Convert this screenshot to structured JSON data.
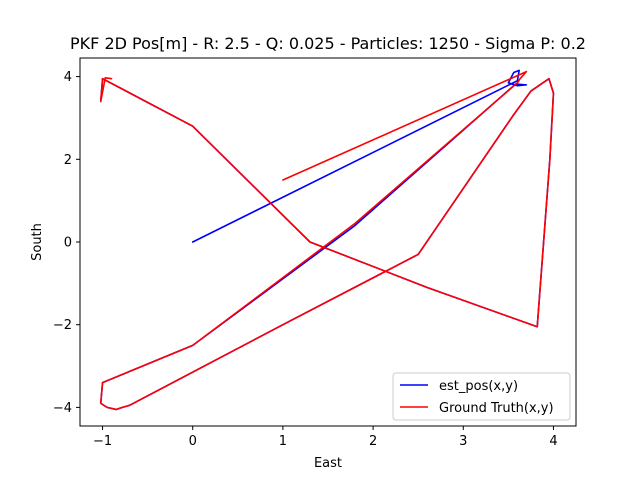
{
  "chart_data": {
    "type": "line",
    "title": "PKF 2D Pos[m] - R: 2.5 - Q: 0.025 - Particles: 1250 - Sigma P: 0.2",
    "xlabel": "East",
    "ylabel": "South",
    "xlim": [
      -1.25,
      4.25
    ],
    "ylim": [
      -4.45,
      4.45
    ],
    "xticks": [
      -1,
      0,
      1,
      2,
      3,
      4
    ],
    "yticks": [
      -4,
      -2,
      0,
      2,
      4
    ],
    "xtick_labels": [
      "−1",
      "0",
      "1",
      "2",
      "3",
      "4"
    ],
    "ytick_labels": [
      "−4",
      "−2",
      "0",
      "2",
      "4"
    ],
    "grid": false,
    "legend_position": "lower-right",
    "series": [
      {
        "name": "est_pos(x,y)",
        "color": "#0000ff",
        "x": [
          0.0,
          3.6,
          3.62,
          3.56,
          3.5,
          3.6,
          3.7,
          3.58,
          1.8,
          0.0,
          -1.0,
          -1.02,
          -0.95,
          -0.85,
          -0.78,
          -0.7,
          1.0,
          2.5,
          3.55,
          3.75,
          3.95,
          4.0,
          3.96,
          3.82,
          2.6,
          1.3,
          0.0,
          -1.0,
          -1.02
        ],
        "y": [
          0.0,
          3.9,
          4.15,
          4.1,
          3.85,
          3.78,
          3.8,
          3.82,
          0.4,
          -2.5,
          -3.4,
          -3.9,
          -4.0,
          -4.05,
          -4.0,
          -3.95,
          -2.0,
          -0.3,
          3.05,
          3.65,
          3.95,
          3.6,
          2.0,
          -2.05,
          -1.1,
          0.0,
          2.8,
          3.95,
          3.4
        ]
      },
      {
        "name": "Ground Truth(x,y)",
        "color": "#ff0000",
        "x": [
          1.0,
          3.7,
          3.63,
          3.6,
          1.8,
          0.0,
          -1.0,
          -1.02,
          -0.95,
          -0.85,
          -0.78,
          -0.7,
          1.0,
          2.5,
          3.55,
          3.75,
          3.95,
          4.0,
          3.96,
          3.82,
          2.6,
          1.3,
          0.0,
          -1.0,
          -1.02,
          -0.97,
          -0.9
        ],
        "y": [
          1.5,
          4.12,
          3.95,
          3.85,
          0.45,
          -2.5,
          -3.4,
          -3.9,
          -4.0,
          -4.05,
          -4.0,
          -3.95,
          -2.0,
          -0.3,
          3.05,
          3.65,
          3.95,
          3.6,
          2.0,
          -2.05,
          -1.1,
          0.0,
          2.8,
          3.95,
          3.4,
          3.97,
          3.95
        ]
      }
    ]
  }
}
